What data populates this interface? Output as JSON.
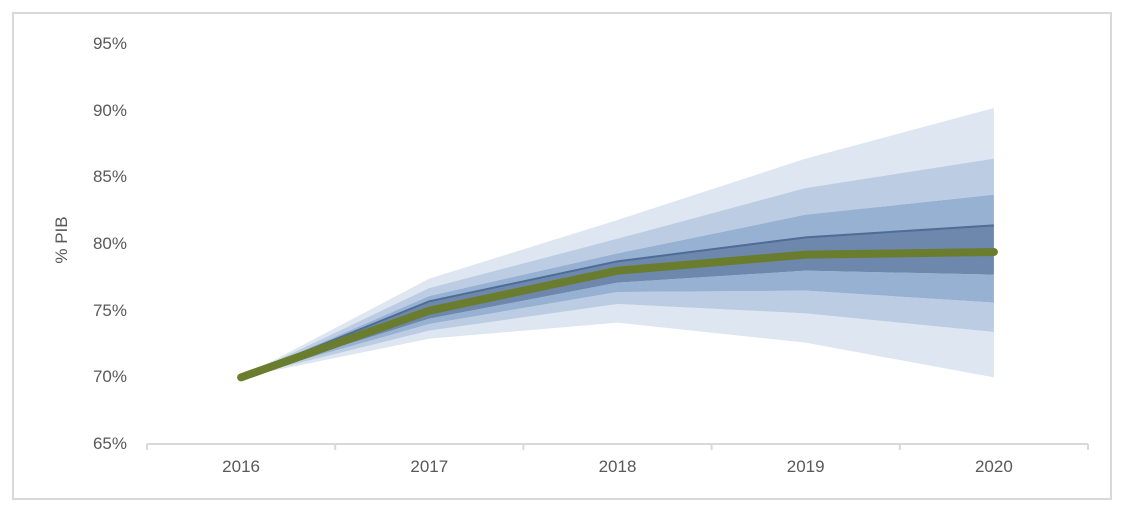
{
  "chart_data": {
    "type": "area",
    "subtype": "fan-chart-with-center-line",
    "title": "",
    "xlabel": "",
    "ylabel": "% PIB",
    "categories": [
      "2016",
      "2017",
      "2018",
      "2019",
      "2020"
    ],
    "ylim": [
      65,
      95
    ],
    "y_tick_values": [
      65,
      70,
      75,
      80,
      85,
      90,
      95
    ],
    "y_tick_labels": [
      "65%",
      "70%",
      "75%",
      "80%",
      "85%",
      "90%",
      "95%"
    ],
    "grid": false,
    "legend": "none",
    "series": [
      {
        "name": "central",
        "role": "center-line",
        "values": [
          70.0,
          75.0,
          78.0,
          79.2,
          79.4
        ]
      },
      {
        "name": "upper1",
        "role": "band-boundary-inner-top",
        "values": [
          70.0,
          75.7,
          78.7,
          80.5,
          81.4
        ]
      },
      {
        "name": "upper2",
        "role": "band-boundary",
        "values": [
          70.0,
          76.1,
          79.3,
          82.2,
          83.7
        ]
      },
      {
        "name": "upper3",
        "role": "band-boundary",
        "values": [
          70.0,
          76.7,
          80.4,
          84.2,
          86.4
        ]
      },
      {
        "name": "upper4",
        "role": "band-boundary-outer-top",
        "values": [
          70.0,
          77.4,
          81.8,
          86.4,
          90.2
        ]
      },
      {
        "name": "lower1",
        "role": "band-boundary-inner-bot",
        "values": [
          70.0,
          74.4,
          77.1,
          78.0,
          77.7
        ]
      },
      {
        "name": "lower2",
        "role": "band-boundary",
        "values": [
          70.0,
          74.0,
          76.4,
          76.5,
          75.6
        ]
      },
      {
        "name": "lower3",
        "role": "band-boundary",
        "values": [
          70.0,
          73.5,
          75.5,
          74.8,
          73.4
        ]
      },
      {
        "name": "lower4",
        "role": "band-boundary-outer-bot",
        "values": [
          70.0,
          72.9,
          74.1,
          72.6,
          70.0
        ]
      }
    ],
    "colors": {
      "band_outer": "#dde6f1",
      "band_mid_light": "#bccde3",
      "band_mid_dark": "#97b1d3",
      "band_inner": "#6d88ac",
      "inner_top_edge_line": "#4d6c96",
      "center_line": "#6a7d2e",
      "axis_line": "#d9d9d9",
      "tick_text": "#595959",
      "frame_border": "#d9d9d9"
    }
  }
}
